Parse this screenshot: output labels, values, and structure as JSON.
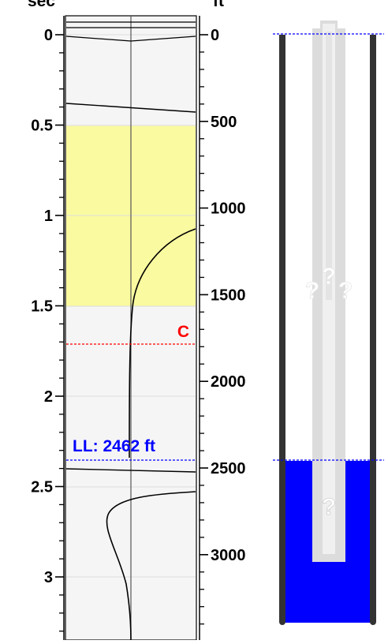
{
  "left_axis": {
    "top_label_clipped": "sec",
    "ticks": [
      {
        "value": 0,
        "label": "0"
      },
      {
        "value": 0.5,
        "label": "0.5"
      },
      {
        "value": 1,
        "label": "1"
      },
      {
        "value": 1.5,
        "label": "1.5"
      },
      {
        "value": 2,
        "label": "2"
      },
      {
        "value": 2.5,
        "label": "2.5"
      },
      {
        "value": 3,
        "label": "3"
      }
    ]
  },
  "right_axis": {
    "unit_label_clipped": "ft",
    "ticks": [
      {
        "value": 0,
        "label": "0"
      },
      {
        "value": 500,
        "label": "500"
      },
      {
        "value": 1000,
        "label": "1000"
      },
      {
        "value": 1500,
        "label": "1500"
      },
      {
        "value": 2000,
        "label": "2000"
      },
      {
        "value": 2500,
        "label": "2500"
      },
      {
        "value": 3000,
        "label": "3000"
      }
    ]
  },
  "echo_trace": {
    "highlight_band": {
      "from_sec": 0.5,
      "to_sec": 1.5,
      "color": "#fafaa0"
    },
    "collar_marker": {
      "depth_ft": 1710,
      "label": "C",
      "color": "#ff0000"
    },
    "liquid_level": {
      "depth_ft": 2462,
      "label": "LL: 2462 ft",
      "color": "#0000ff"
    }
  },
  "wellbore": {
    "liquid_level_ft": 2462,
    "liquid_color": "#0000ff",
    "unknown_markers": [
      "?",
      "?",
      "?",
      "?"
    ]
  },
  "colors": {
    "axis_text": "#000000",
    "panel_bg": "#f5f5f5",
    "grid": "#dddddd",
    "tube_grey": "#d8d8d8",
    "casing_dark": "#333333"
  }
}
